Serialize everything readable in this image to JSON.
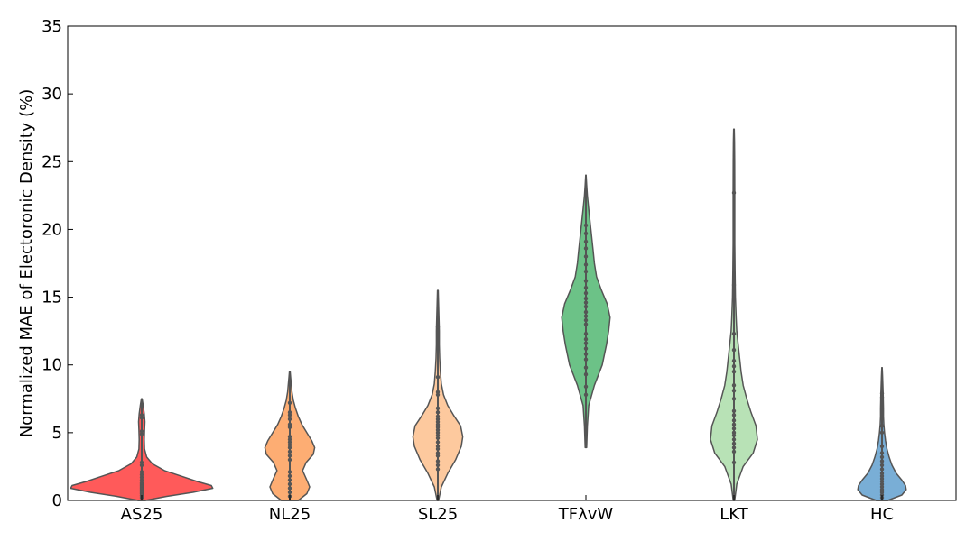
{
  "chart_data": {
    "type": "violin",
    "title": "",
    "xlabel": "",
    "ylabel": "Normalized MAE of Electoronic Density (%)",
    "ylim": [
      0,
      35
    ],
    "yticks": [
      0,
      5,
      10,
      15,
      20,
      25,
      30,
      35
    ],
    "categories": [
      "AS25",
      "NL25",
      "SL25",
      "TFλvW",
      "LKT",
      "HC"
    ],
    "grid": false,
    "legend": "none",
    "series": [
      {
        "category": "AS25",
        "color": "#ff5a5a",
        "min": 0.0,
        "max": 7.5,
        "profile": [
          [
            0.0,
            0.05
          ],
          [
            0.3,
            0.35
          ],
          [
            0.6,
            0.72
          ],
          [
            0.9,
            1.0
          ],
          [
            1.1,
            0.98
          ],
          [
            1.4,
            0.78
          ],
          [
            1.8,
            0.55
          ],
          [
            2.2,
            0.32
          ],
          [
            2.7,
            0.15
          ],
          [
            3.2,
            0.07
          ],
          [
            3.8,
            0.04
          ],
          [
            4.5,
            0.035
          ],
          [
            5.2,
            0.04
          ],
          [
            5.8,
            0.045
          ],
          [
            6.4,
            0.035
          ],
          [
            7.0,
            0.02
          ],
          [
            7.5,
            0.005
          ]
        ],
        "points": [
          0.2,
          0.35,
          0.5,
          0.6,
          0.7,
          0.8,
          0.9,
          1.0,
          1.1,
          1.2,
          1.3,
          1.5,
          1.7,
          1.9,
          2.1,
          2.6,
          2.8,
          4.9,
          5.1,
          6.1,
          6.3
        ]
      },
      {
        "category": "NL25",
        "color": "#fdad73",
        "min": 0.0,
        "max": 9.5,
        "profile": [
          [
            0.0,
            0.12
          ],
          [
            0.5,
            0.24
          ],
          [
            1.0,
            0.28
          ],
          [
            1.5,
            0.24
          ],
          [
            2.2,
            0.18
          ],
          [
            2.8,
            0.23
          ],
          [
            3.4,
            0.33
          ],
          [
            3.9,
            0.35
          ],
          [
            4.4,
            0.31
          ],
          [
            5.0,
            0.24
          ],
          [
            5.6,
            0.17
          ],
          [
            6.2,
            0.12
          ],
          [
            6.8,
            0.08
          ],
          [
            7.4,
            0.05
          ],
          [
            8.0,
            0.03
          ],
          [
            8.6,
            0.02
          ],
          [
            9.1,
            0.012
          ],
          [
            9.5,
            0.005
          ]
        ],
        "points": [
          0.3,
          0.6,
          0.9,
          1.2,
          1.5,
          1.8,
          2.1,
          3.0,
          3.3,
          3.6,
          3.9,
          4.1,
          4.3,
          4.5,
          4.7,
          5.4,
          5.6,
          6.0,
          6.3,
          6.5,
          7.2
        ]
      },
      {
        "category": "SL25",
        "color": "#fdc99e",
        "min": 0.0,
        "max": 15.5,
        "profile": [
          [
            0.0,
            0.01
          ],
          [
            1.0,
            0.05
          ],
          [
            2.0,
            0.14
          ],
          [
            3.0,
            0.25
          ],
          [
            4.0,
            0.33
          ],
          [
            4.7,
            0.35
          ],
          [
            5.5,
            0.32
          ],
          [
            6.3,
            0.22
          ],
          [
            7.0,
            0.14
          ],
          [
            7.8,
            0.08
          ],
          [
            8.6,
            0.05
          ],
          [
            9.5,
            0.035
          ],
          [
            10.5,
            0.025
          ],
          [
            11.5,
            0.02
          ],
          [
            12.5,
            0.02
          ],
          [
            13.5,
            0.015
          ],
          [
            14.5,
            0.01
          ],
          [
            15.5,
            0.005
          ]
        ],
        "points": [
          2.3,
          2.6,
          2.9,
          3.3,
          3.5,
          3.8,
          4.0,
          4.3,
          4.6,
          4.8,
          5.0,
          5.2,
          5.4,
          5.6,
          5.8,
          6.0,
          6.2,
          6.5,
          6.8,
          7.8,
          8.0,
          9.1,
          12.8
        ]
      },
      {
        "category": "TFλvW",
        "color": "#6cc287",
        "min": 3.9,
        "max": 24.0,
        "profile": [
          [
            3.9,
            0.01
          ],
          [
            5.5,
            0.02
          ],
          [
            7.0,
            0.04
          ],
          [
            8.5,
            0.12
          ],
          [
            10.0,
            0.23
          ],
          [
            11.5,
            0.29
          ],
          [
            12.5,
            0.32
          ],
          [
            13.5,
            0.34
          ],
          [
            14.5,
            0.3
          ],
          [
            15.5,
            0.22
          ],
          [
            16.5,
            0.15
          ],
          [
            17.5,
            0.12
          ],
          [
            18.5,
            0.1
          ],
          [
            19.5,
            0.08
          ],
          [
            20.5,
            0.06
          ],
          [
            21.5,
            0.04
          ],
          [
            22.5,
            0.02
          ],
          [
            23.3,
            0.01
          ],
          [
            24.0,
            0.003
          ]
        ],
        "points": [
          7.8,
          8.4,
          9.3,
          9.8,
          10.4,
          10.8,
          11.2,
          11.6,
          11.9,
          12.3,
          13.0,
          13.3,
          13.6,
          13.9,
          14.3,
          14.6,
          14.9,
          15.3,
          15.7,
          16.2,
          16.9,
          17.4,
          18.0,
          18.6,
          19.1,
          19.7,
          20.3
        ]
      },
      {
        "category": "LKT",
        "color": "#b8e2b6",
        "min": 0.0,
        "max": 27.4,
        "profile": [
          [
            0.0,
            0.01
          ],
          [
            1.2,
            0.04
          ],
          [
            2.5,
            0.13
          ],
          [
            3.5,
            0.27
          ],
          [
            4.5,
            0.33
          ],
          [
            5.5,
            0.31
          ],
          [
            6.5,
            0.24
          ],
          [
            7.5,
            0.18
          ],
          [
            8.5,
            0.13
          ],
          [
            9.5,
            0.1
          ],
          [
            10.5,
            0.08
          ],
          [
            11.5,
            0.06
          ],
          [
            12.5,
            0.04
          ],
          [
            13.5,
            0.03
          ],
          [
            15.0,
            0.02
          ],
          [
            17.0,
            0.015
          ],
          [
            19.0,
            0.012
          ],
          [
            21.0,
            0.012
          ],
          [
            23.0,
            0.012
          ],
          [
            25.0,
            0.01
          ],
          [
            26.5,
            0.008
          ],
          [
            27.4,
            0.004
          ]
        ],
        "points": [
          2.8,
          3.6,
          3.9,
          4.2,
          4.5,
          4.8,
          5.0,
          5.3,
          5.6,
          5.9,
          6.3,
          6.6,
          7.5,
          8.1,
          8.5,
          9.5,
          9.9,
          10.3,
          11.1,
          12.3,
          15.9,
          22.7
        ]
      },
      {
        "category": "HC",
        "color": "#79aed6",
        "min": 0.0,
        "max": 9.8,
        "profile": [
          [
            0.0,
            0.08
          ],
          [
            0.4,
            0.28
          ],
          [
            0.8,
            0.34
          ],
          [
            1.1,
            0.33
          ],
          [
            1.5,
            0.28
          ],
          [
            2.0,
            0.2
          ],
          [
            2.6,
            0.14
          ],
          [
            3.2,
            0.1
          ],
          [
            3.8,
            0.07
          ],
          [
            4.4,
            0.05
          ],
          [
            5.0,
            0.035
          ],
          [
            5.6,
            0.025
          ],
          [
            6.2,
            0.02
          ],
          [
            6.8,
            0.02
          ],
          [
            7.4,
            0.018
          ],
          [
            8.0,
            0.015
          ],
          [
            8.6,
            0.012
          ],
          [
            9.2,
            0.008
          ],
          [
            9.8,
            0.003
          ]
        ],
        "points": [
          0.2,
          0.4,
          0.6,
          0.8,
          1.0,
          1.2,
          1.4,
          1.6,
          1.8,
          2.0,
          2.3,
          2.6,
          2.9,
          3.2,
          3.5,
          4.0,
          5.0,
          5.5,
          7.6,
          7.9
        ]
      }
    ]
  }
}
